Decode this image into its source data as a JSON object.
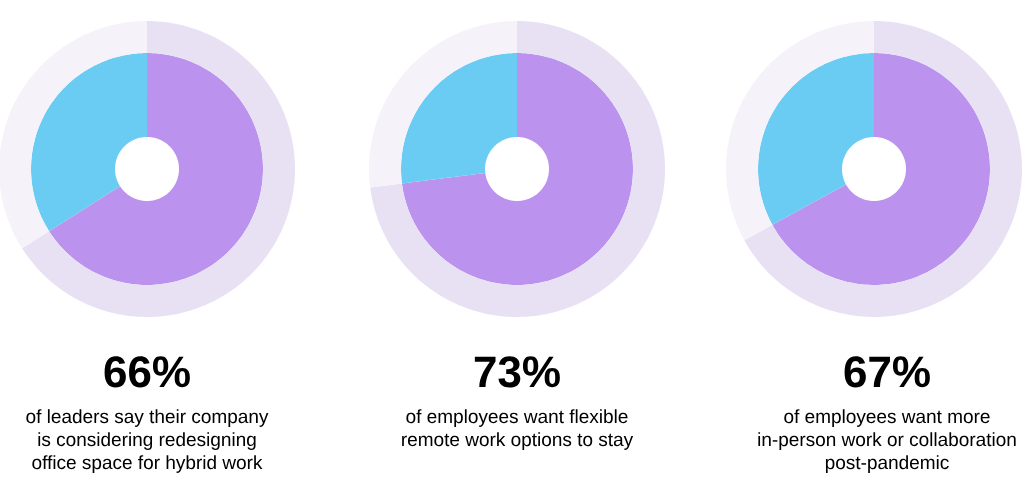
{
  "chart_data": [
    {
      "type": "donut",
      "title": "66%",
      "subtitle": "of leaders say their company is considering redesigning office space for hybrid work",
      "categories": [
        null,
        null
      ],
      "values": [
        66,
        34
      ],
      "colors": [
        "#bb92ee",
        "#6accf2"
      ]
    },
    {
      "type": "donut",
      "categories": [
        null,
        null
      ],
      "values": [
        66,
        34
      ],
      "colors": [
        "#e8e1f4",
        "#f5f2fa"
      ]
    },
    {
      "type": "donut",
      "title": "73%",
      "subtitle": "of employees want flexible remote work options to stay",
      "categories": [
        null,
        null
      ],
      "values": [
        73,
        27
      ],
      "colors": [
        "#bb92ee",
        "#6accf2"
      ]
    },
    {
      "type": "donut",
      "categories": [
        null,
        null
      ],
      "values": [
        73,
        27
      ],
      "colors": [
        "#e8e1f4",
        "#f5f2fa"
      ]
    },
    {
      "type": "donut",
      "title": "67%",
      "subtitle": "of employees want more in-person work or collaboration post-pandemic",
      "categories": [
        null,
        null
      ],
      "values": [
        67,
        33
      ],
      "colors": [
        "#bb92ee",
        "#6accf2"
      ]
    },
    {
      "type": "donut",
      "categories": [
        null,
        null
      ],
      "values": [
        67,
        33
      ],
      "colors": [
        "#e8e1f4",
        "#f5f2fa"
      ]
    }
  ]
}
